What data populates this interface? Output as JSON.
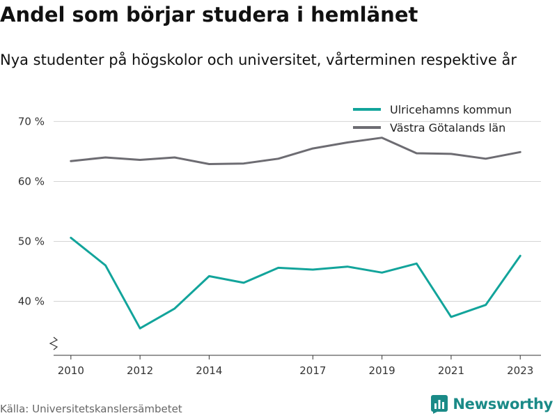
{
  "header": {
    "title": "Andel som börjar studera i hemlänet",
    "subtitle": "Nya studenter på högskolor och universitet, vårterminen respektive år"
  },
  "footer": {
    "source": "Källa: Universitetskanslersämbetet",
    "brand_name": "Newsworthy",
    "brand_icon": "newsworthy-logo-icon"
  },
  "chart_data": {
    "type": "line",
    "x": [
      2010,
      2011,
      2012,
      2013,
      2014,
      2015,
      2016,
      2017,
      2018,
      2019,
      2020,
      2021,
      2022,
      2023
    ],
    "x_tick_values": [
      2010,
      2012,
      2014,
      2017,
      2019,
      2021,
      2023
    ],
    "x_tick_labels": [
      "2010",
      "2012",
      "2014",
      "2017",
      "2019",
      "2021",
      "2023"
    ],
    "y_tick_values": [
      40,
      50,
      60,
      70
    ],
    "y_tick_labels": [
      "40 %",
      "50 %",
      "60 %",
      "70 %"
    ],
    "ylim": [
      31,
      74
    ],
    "xlim": [
      2009.5,
      2023.6
    ],
    "y_axis_break": true,
    "grid": true,
    "legend_position": "top-right",
    "series": [
      {
        "name": "Ulricehamns kommun",
        "color": "#12a49b",
        "values": [
          50.6,
          46.0,
          35.5,
          38.8,
          44.2,
          43.1,
          45.6,
          45.3,
          45.8,
          44.8,
          46.3,
          37.4,
          39.4,
          47.6
        ]
      },
      {
        "name": "Västra Götalands län",
        "color": "#6d6c72",
        "values": [
          63.4,
          64.0,
          63.6,
          64.0,
          62.9,
          63.0,
          63.8,
          65.5,
          66.5,
          67.3,
          64.7,
          64.6,
          63.8,
          64.9
        ]
      }
    ]
  }
}
